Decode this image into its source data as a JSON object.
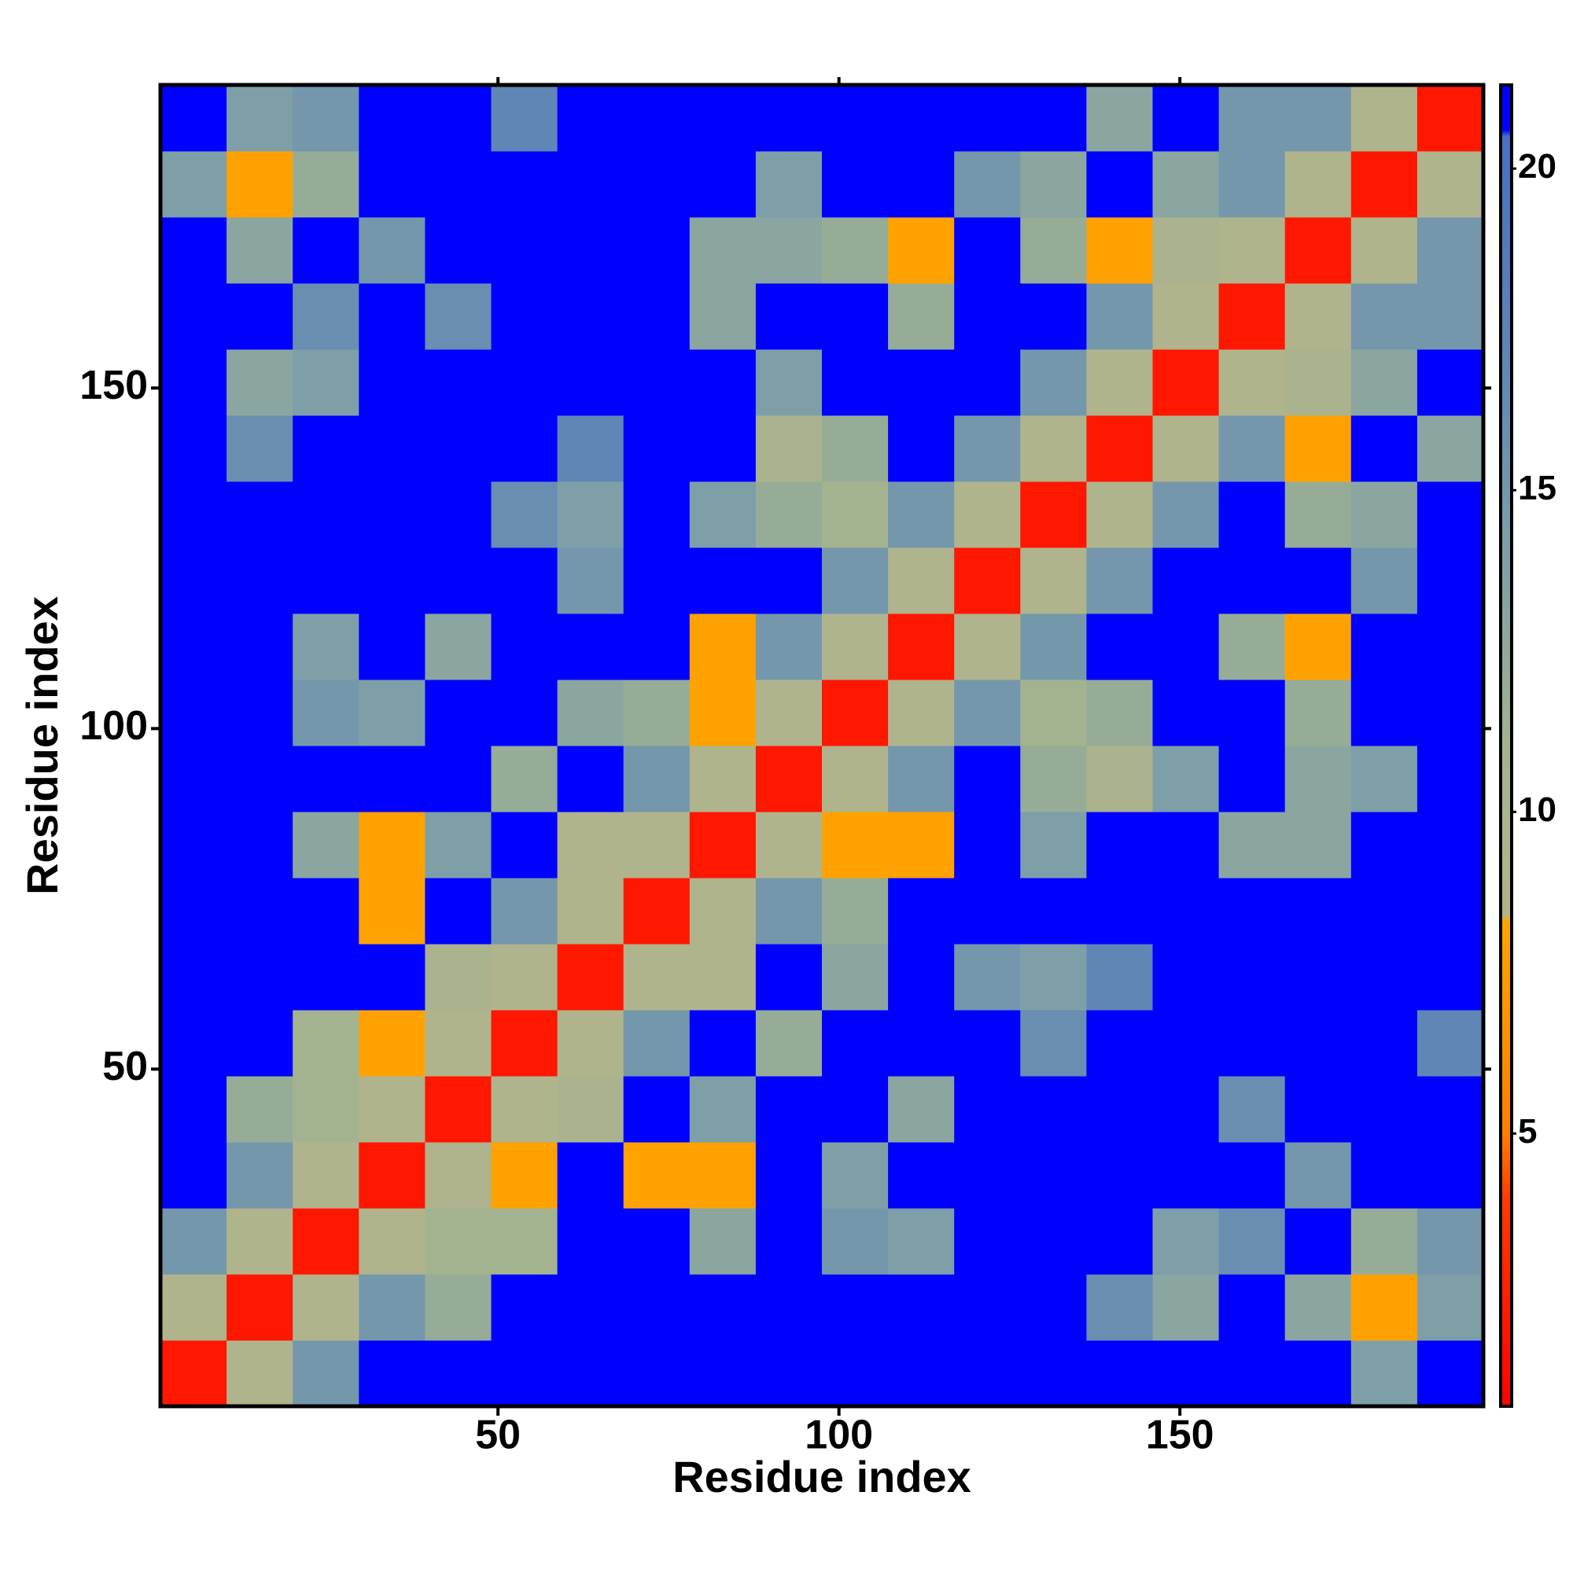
{
  "chart_data": {
    "type": "heatmap",
    "xlabel": "Residue index",
    "ylabel": "Residue index",
    "xbins": [
      0.5,
      10.2,
      19.9,
      29.6,
      39.3,
      49,
      58.7,
      68.4,
      78.1,
      87.8,
      97.5,
      107.2,
      116.9,
      126.6,
      136.3,
      146,
      155.7,
      165.4,
      175.1,
      184.8,
      194.5
    ],
    "ybins": [
      0.5,
      10.2,
      19.9,
      29.6,
      39.3,
      49,
      58.7,
      68.4,
      78.1,
      87.8,
      97.5,
      107.2,
      116.9,
      126.6,
      136.3,
      146,
      155.7,
      165.4,
      175.1,
      184.8,
      194.5
    ],
    "values": [
      [
        2,
        9,
        15,
        21,
        21,
        21,
        21,
        21,
        21,
        21,
        21,
        21,
        21,
        21,
        21,
        21,
        21,
        21,
        14,
        21
      ],
      [
        9,
        2,
        9,
        15,
        12,
        21,
        21,
        21,
        21,
        21,
        21,
        21,
        21,
        21,
        16,
        13,
        21,
        13,
        8,
        14
      ],
      [
        15,
        9,
        2,
        9,
        11,
        11,
        21,
        21,
        13,
        21,
        15,
        14,
        21,
        21,
        21,
        14,
        16,
        21,
        12,
        15
      ],
      [
        21,
        15,
        9,
        2,
        9,
        8,
        21,
        8,
        8,
        21,
        14,
        21,
        21,
        21,
        21,
        21,
        21,
        15,
        21,
        21
      ],
      [
        21,
        12,
        11,
        9,
        2,
        9,
        10,
        21,
        14,
        21,
        21,
        13,
        21,
        21,
        21,
        21,
        16,
        21,
        21,
        21
      ],
      [
        21,
        21,
        11,
        8,
        9,
        2,
        9,
        15,
        21,
        12,
        21,
        21,
        21,
        16,
        21,
        21,
        21,
        21,
        21,
        17
      ],
      [
        21,
        21,
        21,
        21,
        10,
        9,
        2,
        9,
        9,
        21,
        13,
        21,
        15,
        14,
        17,
        21,
        21,
        21,
        21,
        21
      ],
      [
        21,
        21,
        21,
        8,
        21,
        15,
        9,
        2,
        9,
        15,
        12,
        21,
        21,
        21,
        21,
        21,
        21,
        21,
        21,
        21
      ],
      [
        21,
        21,
        13,
        8,
        14,
        21,
        9,
        9,
        2,
        9,
        8,
        8,
        21,
        14,
        21,
        21,
        13,
        13,
        21,
        21
      ],
      [
        21,
        21,
        21,
        21,
        21,
        12,
        21,
        15,
        9,
        2,
        9,
        15,
        21,
        12,
        10,
        14,
        21,
        13,
        14,
        21
      ],
      [
        21,
        21,
        15,
        14,
        21,
        21,
        13,
        12,
        8,
        9,
        2,
        9,
        15,
        11,
        12,
        21,
        21,
        12,
        21,
        21
      ],
      [
        21,
        21,
        14,
        21,
        13,
        21,
        21,
        21,
        8,
        15,
        9,
        2,
        9,
        15,
        21,
        21,
        12,
        8,
        21,
        21
      ],
      [
        21,
        21,
        21,
        21,
        21,
        21,
        15,
        21,
        21,
        21,
        15,
        9,
        2,
        9,
        15,
        21,
        21,
        21,
        15,
        21
      ],
      [
        21,
        21,
        21,
        21,
        21,
        16,
        14,
        21,
        14,
        12,
        11,
        15,
        9,
        2,
        9,
        15,
        21,
        12,
        13,
        21
      ],
      [
        21,
        16,
        21,
        21,
        21,
        21,
        17,
        21,
        21,
        10,
        12,
        21,
        15,
        9,
        2,
        9,
        15,
        8,
        21,
        13
      ],
      [
        21,
        13,
        14,
        21,
        21,
        21,
        21,
        21,
        21,
        14,
        21,
        21,
        21,
        15,
        9,
        2,
        9,
        10,
        13,
        21
      ],
      [
        21,
        21,
        16,
        21,
        16,
        21,
        21,
        21,
        13,
        21,
        21,
        12,
        21,
        21,
        15,
        9,
        2,
        9,
        15,
        15
      ],
      [
        21,
        13,
        21,
        15,
        21,
        21,
        21,
        21,
        13,
        13,
        12,
        8,
        21,
        12,
        8,
        10,
        9,
        2,
        9,
        15
      ],
      [
        14,
        8,
        12,
        21,
        21,
        21,
        21,
        21,
        21,
        14,
        21,
        21,
        15,
        13,
        21,
        13,
        15,
        9,
        2,
        9
      ],
      [
        21,
        14,
        15,
        21,
        21,
        17,
        21,
        21,
        21,
        21,
        21,
        21,
        21,
        21,
        13,
        21,
        15,
        15,
        9,
        2
      ]
    ],
    "xlim": [
      0.5,
      194.5
    ],
    "ylim": [
      0.5,
      194.5
    ],
    "xticks": [
      50,
      100,
      150
    ],
    "yticks": [
      50,
      100,
      150
    ],
    "zlim": [
      0.76,
      21.3
    ],
    "zticks": [
      5,
      10,
      15,
      20
    ],
    "colorscale": [
      [
        0.76,
        "#ff0000"
      ],
      [
        4,
        "#ff3c00"
      ],
      [
        5,
        "#ff7f00"
      ],
      [
        8.3,
        "#ffa500"
      ],
      [
        8.4,
        "#b4b48c"
      ],
      [
        11,
        "#a3b38f"
      ],
      [
        14,
        "#7f9fa8"
      ],
      [
        17,
        "#5f86b5"
      ],
      [
        20.5,
        "#4a6fc0"
      ],
      [
        20.6,
        "#0000ff"
      ],
      [
        21.3,
        "#0000ff"
      ]
    ]
  }
}
